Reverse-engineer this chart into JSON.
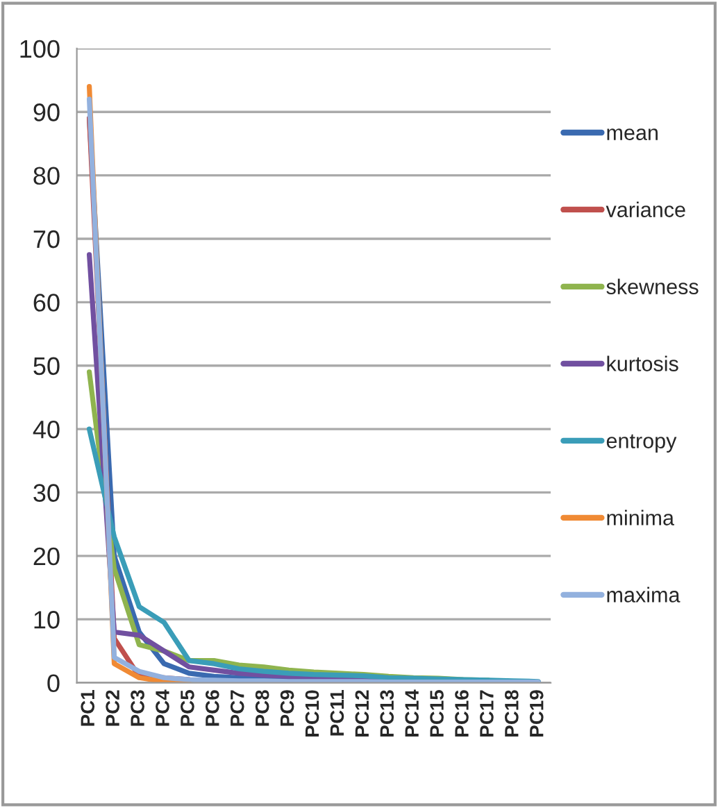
{
  "chart_data": {
    "type": "line",
    "categories": [
      "PC1",
      "PC2",
      "PC3",
      "PC4",
      "PC5",
      "PC6",
      "PC7",
      "PC8",
      "PC9",
      "PC10",
      "PC11",
      "PC12",
      "PC13",
      "PC14",
      "PC15",
      "PC16",
      "PC17",
      "PC18",
      "PC19"
    ],
    "series": [
      {
        "name": "mean",
        "color": "#3a6ab0",
        "values": [
          89,
          20,
          8,
          3,
          1.5,
          1,
          0.8,
          0.6,
          0.5,
          0.4,
          0.3,
          0.3,
          0.2,
          0.2,
          0.2,
          0.1,
          0.1,
          0.1,
          0.1
        ]
      },
      {
        "name": "variance",
        "color": "#c0504d",
        "values": [
          89,
          7,
          1,
          0.8,
          0.5,
          null,
          null,
          null,
          null,
          null,
          null,
          null,
          null,
          null,
          null,
          null,
          null,
          null,
          null
        ]
      },
      {
        "name": "skewness",
        "color": "#8fb44e",
        "values": [
          49,
          18,
          6,
          5,
          3.5,
          3.5,
          2.8,
          2.5,
          2,
          1.7,
          1.5,
          1.3,
          1,
          0.8,
          0.7,
          0.5,
          0.4,
          null,
          null
        ]
      },
      {
        "name": "kurtosis",
        "color": "#7150a0",
        "values": [
          67.5,
          8,
          7.5,
          5,
          2.5,
          2,
          1.5,
          1.2,
          1,
          0.9,
          0.8,
          0.7,
          0.6,
          0.5,
          0.5,
          0.4,
          0.3,
          0.2,
          0.1
        ]
      },
      {
        "name": "entropy",
        "color": "#3a9db8",
        "values": [
          40,
          23,
          12,
          9.5,
          3.5,
          3,
          2.2,
          1.8,
          1.5,
          1.3,
          1.2,
          1.1,
          0.8,
          0.7,
          0.6,
          0.5,
          0.4,
          0.3,
          0.2
        ]
      },
      {
        "name": "minima",
        "color": "#f08a34",
        "values": [
          94,
          3,
          0.8,
          0.2,
          0.1,
          null,
          null,
          null,
          null,
          null,
          null,
          null,
          null,
          null,
          null,
          null,
          null,
          null,
          null
        ]
      },
      {
        "name": "maxima",
        "color": "#93b1de",
        "values": [
          92,
          4,
          1.8,
          0.8,
          0.5,
          0.4,
          0.3,
          0.3,
          0.2,
          0.2,
          0.2,
          0.2,
          0.1,
          0.1,
          0.1,
          0.1,
          0.1,
          0.1,
          0.1
        ]
      }
    ],
    "ylim": [
      0,
      100
    ],
    "yticks": [
      0,
      10,
      20,
      30,
      40,
      50,
      60,
      70,
      80,
      90,
      100
    ],
    "grid": "y",
    "legend": "right",
    "marker": "none",
    "line_style": "solid"
  }
}
